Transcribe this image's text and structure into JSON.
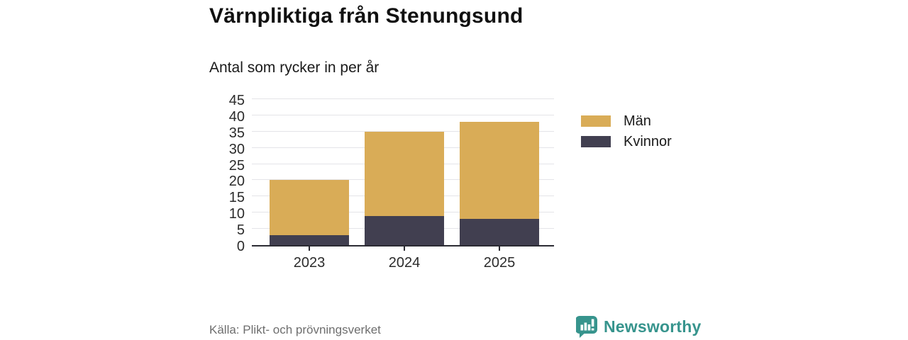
{
  "header": {
    "title": "Värnpliktiga från Stenungsund",
    "subtitle": "Antal som rycker in per år"
  },
  "chart_data": {
    "type": "bar",
    "stacked": true,
    "title": "Värnpliktiga från Stenungsund",
    "subtitle": "Antal som rycker in per år",
    "categories": [
      "2023",
      "2024",
      "2025"
    ],
    "series": [
      {
        "name": "Kvinnor",
        "color": "#413f50",
        "values": [
          3,
          9,
          8
        ]
      },
      {
        "name": "Män",
        "color": "#d9ac57",
        "values": [
          17,
          26,
          30
        ]
      }
    ],
    "stack_order_bottom_to_top": [
      "Kvinnor",
      "Män"
    ],
    "totals": [
      20,
      35,
      38
    ],
    "ylim": [
      0,
      45
    ],
    "yticks": [
      0,
      5,
      10,
      15,
      20,
      25,
      30,
      35,
      40,
      45
    ],
    "grid": "horizontal",
    "legend_position": "right",
    "xlabel": "",
    "ylabel": ""
  },
  "legend": {
    "items": [
      {
        "label": "Män",
        "color": "#d9ac57"
      },
      {
        "label": "Kvinnor",
        "color": "#413f50"
      }
    ]
  },
  "footer": {
    "source": "Källa: Plikt- och prövningsverket",
    "brand": "Newsworthy"
  },
  "colors": {
    "men": "#d9ac57",
    "women": "#413f50",
    "axis": "#2b2b33",
    "gridline": "#e4e4e8",
    "brand_teal": "#37948d",
    "source_gray": "#6e6e6e"
  }
}
